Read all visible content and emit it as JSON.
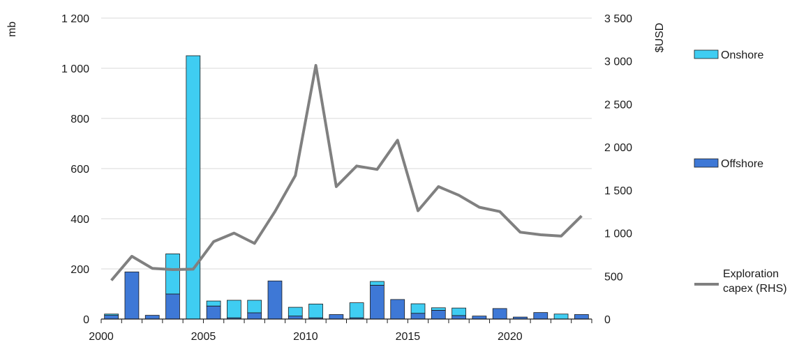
{
  "chart_data": {
    "type": "bar",
    "stacked": true,
    "title": "",
    "xlabel": "",
    "ylabel": "mb",
    "y2label": "$USD",
    "ylim": [
      0,
      1200
    ],
    "y2lim": [
      0,
      3500
    ],
    "grid": true,
    "legend_position": "right",
    "x_ticks": [
      "2000",
      "2005",
      "2010",
      "2015",
      "2020"
    ],
    "y_ticks": [
      "0",
      "200",
      "400",
      "600",
      "800",
      "1 000",
      "1 200"
    ],
    "y2_ticks": [
      "0",
      "500",
      "1 000",
      "1 500",
      "2 000",
      "2 500",
      "3 000",
      "3 500"
    ],
    "categories": [
      2000,
      2001,
      2002,
      2003,
      2004,
      2005,
      2006,
      2007,
      2008,
      2009,
      2010,
      2011,
      2012,
      2013,
      2014,
      2015,
      2016,
      2017,
      2018,
      2019,
      2020,
      2021,
      2022,
      2023
    ],
    "series": [
      {
        "name": "Onshore",
        "type": "bar",
        "color": "#3fcdf2",
        "values": [
          5,
          0,
          0,
          160,
          1050,
          20,
          70,
          50,
          0,
          35,
          55,
          0,
          60,
          15,
          0,
          38,
          10,
          30,
          0,
          0,
          0,
          0,
          20,
          0
        ]
      },
      {
        "name": "Offshore",
        "type": "bar",
        "color": "#3e78d6",
        "values": [
          15,
          188,
          15,
          100,
          0,
          52,
          5,
          25,
          152,
          12,
          5,
          18,
          5,
          135,
          78,
          23,
          35,
          14,
          12,
          42,
          8,
          26,
          0,
          18
        ]
      },
      {
        "name": "Exploration capex (RHS)",
        "type": "line",
        "axis": "right",
        "color": "#808080",
        "values": [
          450,
          730,
          590,
          575,
          580,
          900,
          1000,
          880,
          1250,
          1670,
          2950,
          1540,
          1780,
          1740,
          2080,
          1260,
          1540,
          1440,
          1300,
          1250,
          1010,
          980,
          965,
          1200
        ]
      }
    ]
  }
}
